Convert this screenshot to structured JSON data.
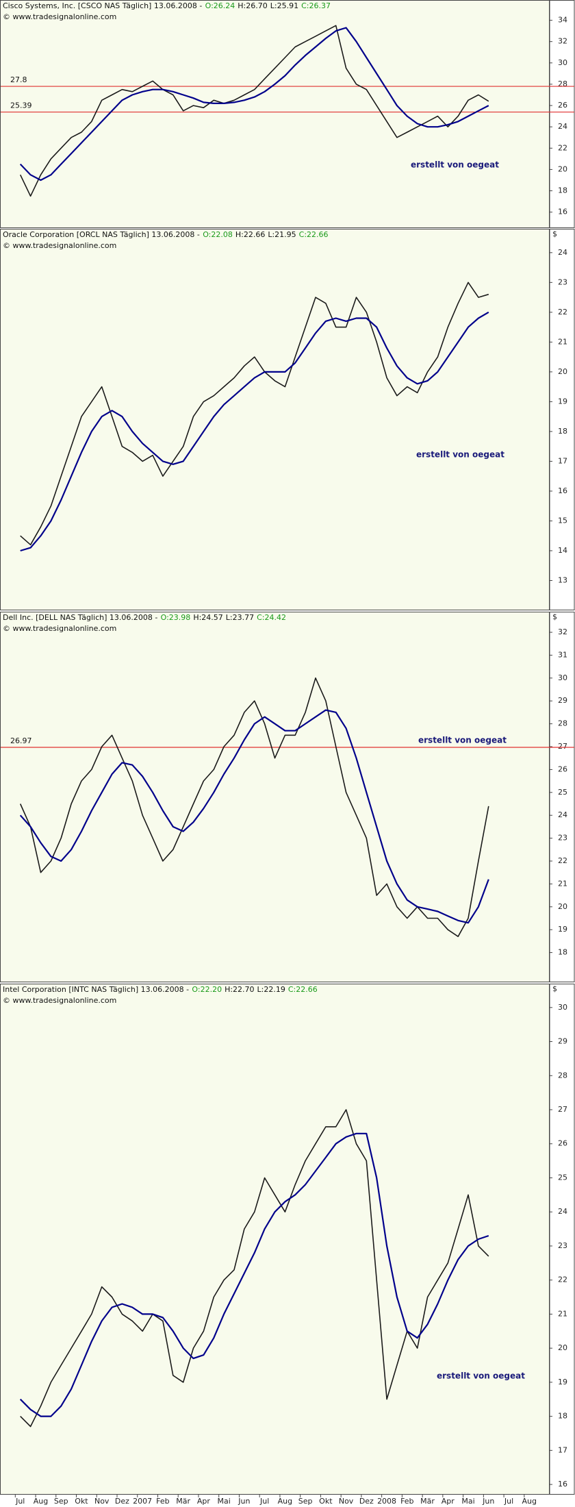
{
  "chart_data": [
    {
      "type": "line",
      "title": "Cisco Systems, Inc. [CSCO NAS  Täglich] 13.06.2008 -",
      "open": "O:26.24",
      "high": "H:26.70",
      "low": "L:25.91",
      "close": "C:26.37",
      "source": "© www.tradesignalonline.com",
      "annotation": "erstellt von oegeat",
      "ylim": [
        14.5,
        35.9
      ],
      "yticks": [
        16,
        18,
        20,
        22,
        24,
        26,
        28,
        30,
        32,
        34
      ],
      "hlines": [
        27.8,
        25.39
      ],
      "series": [
        {
          "color": "#1a1a1a",
          "values": [
            19.5,
            17.5,
            19.5,
            21,
            22,
            23,
            23.5,
            24.5,
            26.5,
            27,
            27.5,
            27.3,
            27.8,
            28.3,
            27.5,
            27,
            25.5,
            26,
            25.8,
            26.5,
            26.2,
            26.5,
            27,
            27.5,
            28.5,
            29.5,
            30.5,
            31.5,
            32,
            32.5,
            33,
            33.5,
            29.5,
            28,
            27.5,
            26,
            24.5,
            23,
            23.5,
            24,
            24.5,
            25,
            24,
            25,
            26.5,
            27,
            26.4,
            null,
            null,
            null,
            null,
            null
          ]
        },
        {
          "color": "#00008b",
          "values": [
            20.5,
            19.5,
            19,
            19.5,
            20.5,
            21.5,
            22.5,
            23.5,
            24.5,
            25.5,
            26.5,
            27,
            27.3,
            27.5,
            27.5,
            27.3,
            27,
            26.7,
            26.3,
            26.2,
            26.2,
            26.3,
            26.5,
            26.8,
            27.3,
            28,
            28.8,
            29.8,
            30.7,
            31.5,
            32.3,
            33,
            33.3,
            32,
            30.5,
            29,
            27.5,
            26,
            25,
            24.3,
            24,
            24,
            24.2,
            24.5,
            25,
            25.5,
            26,
            null,
            null,
            null,
            null,
            null
          ]
        }
      ]
    },
    {
      "type": "line",
      "title": "Oracle Corporation [ORCL NAS  Täglich] 13.06.2008 -",
      "open": "O:22.08",
      "high": "H:22.66",
      "low": "L:21.95",
      "close": "C:22.66",
      "source": "© www.tradesignalonline.com",
      "annotation": "erstellt von oegeat",
      "unit": "$",
      "ylim": [
        12,
        24.8
      ],
      "yticks": [
        13,
        14,
        15,
        16,
        17,
        18,
        19,
        20,
        21,
        22,
        23,
        24
      ],
      "series": [
        {
          "color": "#1a1a1a",
          "values": [
            14.5,
            14.2,
            14.8,
            15.5,
            16.5,
            17.5,
            18.5,
            19,
            19.5,
            18.5,
            17.5,
            17.3,
            17,
            17.2,
            16.5,
            17,
            17.5,
            18.5,
            19,
            19.2,
            19.5,
            19.8,
            20.2,
            20.5,
            20,
            19.7,
            19.5,
            20.5,
            21.5,
            22.5,
            22.3,
            21.5,
            21.5,
            22.5,
            22,
            21,
            19.8,
            19.2,
            19.5,
            19.3,
            20,
            20.5,
            21.5,
            22.3,
            23,
            22.5,
            22.6,
            null,
            null,
            null,
            null,
            null
          ]
        },
        {
          "color": "#00008b",
          "values": [
            14,
            14.1,
            14.5,
            15,
            15.7,
            16.5,
            17.3,
            18,
            18.5,
            18.7,
            18.5,
            18,
            17.6,
            17.3,
            17,
            16.9,
            17,
            17.5,
            18,
            18.5,
            18.9,
            19.2,
            19.5,
            19.8,
            20,
            20,
            20,
            20.3,
            20.8,
            21.3,
            21.7,
            21.8,
            21.7,
            21.8,
            21.8,
            21.5,
            20.8,
            20.2,
            19.8,
            19.6,
            19.7,
            20,
            20.5,
            21,
            21.5,
            21.8,
            22,
            null,
            null,
            null,
            null,
            null
          ]
        }
      ]
    },
    {
      "type": "line",
      "title": "Dell Inc. [DELL NAS  Täglich] 13.06.2008 -",
      "open": "O:23.98",
      "high": "H:24.57",
      "low": "L:23.77",
      "close": "C:24.42",
      "source": "© www.tradesignalonline.com",
      "annotation": "erstellt von oegeat",
      "unit": "$",
      "ylim": [
        16.7,
        32.9
      ],
      "yticks": [
        18,
        19,
        20,
        21,
        22,
        23,
        24,
        25,
        26,
        27,
        28,
        29,
        30,
        31,
        32
      ],
      "hlines": [
        26.97
      ],
      "series": [
        {
          "color": "#1a1a1a",
          "values": [
            24.5,
            23.5,
            21.5,
            22,
            23,
            24.5,
            25.5,
            26,
            27,
            27.5,
            26.5,
            25.5,
            24,
            23,
            22,
            22.5,
            23.5,
            24.5,
            25.5,
            26,
            27,
            27.5,
            28.5,
            29,
            28,
            26.5,
            27.5,
            27.5,
            28.5,
            30,
            29,
            27,
            25,
            24,
            23,
            20.5,
            21,
            20,
            19.5,
            20,
            19.5,
            19.5,
            19,
            18.7,
            19.5,
            22,
            24.4,
            null,
            null,
            null,
            null,
            null
          ]
        },
        {
          "color": "#00008b",
          "values": [
            24,
            23.5,
            22.8,
            22.2,
            22,
            22.5,
            23.3,
            24.2,
            25,
            25.8,
            26.3,
            26.2,
            25.7,
            25,
            24.2,
            23.5,
            23.3,
            23.7,
            24.3,
            25,
            25.8,
            26.5,
            27.3,
            28,
            28.3,
            28,
            27.7,
            27.7,
            28,
            28.3,
            28.6,
            28.5,
            27.8,
            26.5,
            25,
            23.5,
            22,
            21,
            20.3,
            20,
            19.9,
            19.8,
            19.6,
            19.4,
            19.3,
            20,
            21.2,
            null,
            null,
            null,
            null,
            null
          ]
        }
      ]
    },
    {
      "type": "line",
      "title": "Intel Corporation [INTC NAS  Täglich] 13.06.2008 -",
      "open": "O:22.20",
      "high": "H:22.70",
      "low": "L:22.19",
      "close": "C:22.66",
      "source": "© www.tradesignalonline.com",
      "annotation": "erstellt von oegeat",
      "unit": "$",
      "ylim": [
        15.7,
        30.7
      ],
      "yticks": [
        16,
        17,
        18,
        19,
        20,
        21,
        22,
        23,
        24,
        25,
        26,
        27,
        28,
        29,
        30
      ],
      "categories": [
        "Jul",
        null,
        "Aug",
        null,
        "Sep",
        null,
        "Okt",
        null,
        "Nov",
        null,
        "Dez",
        null,
        "2007",
        null,
        "Feb",
        null,
        "Mär",
        null,
        "Apr",
        null,
        "Mai",
        null,
        "Jun",
        null,
        "Jul",
        null,
        "Aug",
        null,
        "Sep",
        null,
        "Okt",
        null,
        "Nov",
        null,
        "Dez",
        null,
        "2008",
        null,
        "Feb",
        null,
        "Mär",
        null,
        "Apr",
        null,
        "Mai",
        null,
        "Jun",
        null,
        "Jul",
        null,
        "Aug",
        null
      ],
      "series": [
        {
          "color": "#1a1a1a",
          "values": [
            18,
            17.7,
            18.3,
            19,
            19.5,
            20,
            20.5,
            21,
            21.8,
            21.5,
            21,
            20.8,
            20.5,
            21,
            20.8,
            19.2,
            19,
            20,
            20.5,
            21.5,
            22,
            22.3,
            23.5,
            24,
            25,
            24.5,
            24,
            24.8,
            25.5,
            26,
            26.5,
            26.5,
            27,
            26,
            25.5,
            22,
            18.5,
            19.5,
            20.5,
            20,
            21.5,
            22,
            22.5,
            23.5,
            24.5,
            23,
            22.7,
            null,
            null,
            null,
            null,
            null
          ]
        },
        {
          "color": "#00008b",
          "values": [
            18.5,
            18.2,
            18,
            18,
            18.3,
            18.8,
            19.5,
            20.2,
            20.8,
            21.2,
            21.3,
            21.2,
            21,
            21,
            20.9,
            20.5,
            20,
            19.7,
            19.8,
            20.3,
            21,
            21.6,
            22.2,
            22.8,
            23.5,
            24,
            24.3,
            24.5,
            24.8,
            25.2,
            25.6,
            26,
            26.2,
            26.3,
            26.3,
            25,
            23,
            21.5,
            20.5,
            20.3,
            20.7,
            21.3,
            22,
            22.6,
            23,
            23.2,
            23.3,
            null,
            null,
            null,
            null,
            null
          ]
        }
      ]
    }
  ]
}
